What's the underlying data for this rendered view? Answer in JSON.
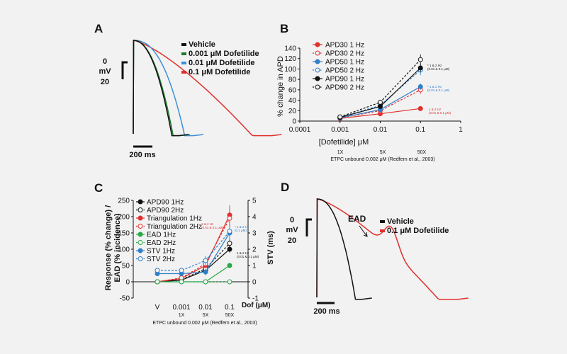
{
  "panels": {
    "A": {
      "letter": "A"
    },
    "B": {
      "letter": "B"
    },
    "C": {
      "letter": "C"
    },
    "D": {
      "letter": "D"
    }
  },
  "colors": {
    "vehicle": "#111111",
    "d0001": "#1f7a28",
    "d001": "#3d8fd6",
    "d01": "#e0302e",
    "apd30": "#e0302e",
    "apd50": "#2f7fc9",
    "apd90": "#111111",
    "ead": "#29a847",
    "stv": "#2f7fc9",
    "tri": "#e0302e"
  },
  "chart_data": [
    {
      "type": "line",
      "panel": "A",
      "title": "",
      "scale_bar_v": {
        "top": "0",
        "unit": "mV",
        "bottom": "20"
      },
      "scale_bar_h": "200 ms",
      "legend": [
        "Vehicle",
        "0.001 μM Dofetilide",
        "0.01 μM Dofetilide",
        "0.1 μM Dofetilide"
      ],
      "series": [
        {
          "name": "Vehicle",
          "apd_ms": 150
        },
        {
          "name": "0.001 μM Dofetilide",
          "apd_ms": 155
        },
        {
          "name": "0.01 μM Dofetilide",
          "apd_ms": 200
        },
        {
          "name": "0.1 μM Dofetilide",
          "apd_ms": 460
        }
      ]
    },
    {
      "type": "line",
      "panel": "B",
      "xscale": "log",
      "xlim": [
        0.0001,
        1
      ],
      "ylim": [
        0,
        140
      ],
      "xticks": [
        "0.0001",
        "0.001",
        "0.01",
        "0.1",
        "1"
      ],
      "yticks": [
        "0",
        "20",
        "40",
        "60",
        "80",
        "100",
        "120",
        "140"
      ],
      "xlabel": "[Dofetilide] μM",
      "ylabel": "% change in APD",
      "fold_labels": [
        "1X",
        "5X",
        "50X"
      ],
      "footnote": "ETPC unbound 0.002 μM (Redfern et al., 2003)",
      "x": [
        0.001,
        0.01,
        0.1
      ],
      "series": [
        {
          "name": "APD30 1 Hz",
          "values": [
            5,
            14,
            24
          ],
          "errors": [
            1,
            2,
            3
          ]
        },
        {
          "name": "APD30 2 Hz",
          "values": [
            6,
            20,
            60
          ],
          "errors": [
            1,
            3,
            8
          ]
        },
        {
          "name": "APD50 1 Hz",
          "values": [
            6,
            22,
            66
          ],
          "errors": [
            1,
            3,
            6
          ]
        },
        {
          "name": "APD50 2 Hz",
          "values": [
            7,
            30,
            98
          ],
          "errors": [
            1,
            4,
            10
          ]
        },
        {
          "name": "APD90 1 Hz",
          "values": [
            7,
            28,
            102
          ],
          "errors": [
            1,
            4,
            8
          ]
        },
        {
          "name": "APD90 2 Hz",
          "values": [
            8,
            36,
            118
          ],
          "errors": [
            1,
            5,
            10
          ]
        }
      ],
      "annotations": [
        {
          "series": "APD90 1 Hz",
          "line1": "* 1 & 2 Hz",
          "line2": "(0.01 & 0.1 μM)"
        },
        {
          "series": "APD50 1 Hz",
          "line1": "* 1 & 2 Hz",
          "line2": "(0.01 & 0.1 μM)"
        },
        {
          "series": "APD30 1 Hz",
          "line1": "1 & 2 Hz",
          "line2": "(0.01 & 0.1 μM)"
        }
      ]
    },
    {
      "type": "line",
      "panel": "C",
      "ylim": [
        -50,
        250
      ],
      "y2lim": [
        -1,
        5
      ],
      "yticks": [
        "-50",
        "0",
        "50",
        "100",
        "150",
        "200",
        "250"
      ],
      "y2ticks": [
        "-1",
        "0",
        "1",
        "2",
        "3",
        "4",
        "5"
      ],
      "categories": [
        "V",
        "0.001",
        "0.01",
        "0.1"
      ],
      "xlabel": "Dof (μM)",
      "ylabel_line1": "Response (% change) /",
      "ylabel_line2": "EAD (% incidence)",
      "y2label": "STV (ms)",
      "fold_labels": [
        "1X",
        "5X",
        "50X"
      ],
      "footnote": "ETPC unbound 0.002 μM (Redfern et al., 2003)",
      "series": [
        {
          "name": "APD90 1Hz",
          "axis": "left",
          "values": [
            0,
            5,
            35,
            100
          ],
          "errors": [
            2,
            2,
            5,
            10
          ]
        },
        {
          "name": "APD90 2Hz",
          "axis": "left",
          "values": [
            0,
            6,
            40,
            118
          ],
          "errors": [
            2,
            2,
            6,
            12
          ]
        },
        {
          "name": "Triangulation 1Hz",
          "axis": "left",
          "values": [
            0,
            10,
            50,
            205
          ],
          "errors": [
            2,
            3,
            8,
            30
          ]
        },
        {
          "name": "Triangulation 2Hz",
          "axis": "left",
          "values": [
            0,
            12,
            55,
            195
          ],
          "errors": [
            2,
            3,
            8,
            28
          ]
        },
        {
          "name": "EAD 1Hz",
          "axis": "left",
          "values": [
            0,
            0,
            0,
            50
          ],
          "errors": [
            0,
            0,
            0,
            0
          ]
        },
        {
          "name": "EAD 2Hz",
          "axis": "left",
          "values": [
            0,
            0,
            0,
            0
          ],
          "errors": [
            0,
            0,
            0,
            0
          ]
        },
        {
          "name": "STV 1Hz",
          "axis": "right",
          "values": [
            0.5,
            0.5,
            0.6,
            3.0
          ],
          "errors": [
            0.1,
            0.1,
            0.2,
            0.4
          ]
        },
        {
          "name": "STV 2Hz",
          "axis": "right",
          "values": [
            0.7,
            0.7,
            1.3,
            3.1
          ],
          "errors": [
            0.1,
            0.1,
            0.3,
            0.5
          ]
        }
      ],
      "annotations": [
        {
          "series": "Triangulation 1Hz",
          "line1": "1 & 2 Hz",
          "line2": "(0.01 & 0.1 μM)"
        },
        {
          "series": "STV 1Hz",
          "line1": "* 1 & 2 Hz",
          "line2": "(0.1 μM)"
        },
        {
          "series": "APD90 1Hz",
          "line1": "1 & 2 Hz",
          "line2": "(0.01 & 0.1 μM)"
        }
      ]
    },
    {
      "type": "line",
      "panel": "D",
      "scale_bar_v": {
        "top": "0",
        "unit": "mV",
        "bottom": "20"
      },
      "scale_bar_h": "200 ms",
      "annotation": "EAD",
      "legend": [
        "Vehicle",
        "0.1 μM Dofetilide"
      ],
      "series": [
        {
          "name": "Vehicle",
          "apd_ms": 150
        },
        {
          "name": "0.1 μM Dofetilide",
          "apd_ms": 470
        }
      ]
    }
  ]
}
